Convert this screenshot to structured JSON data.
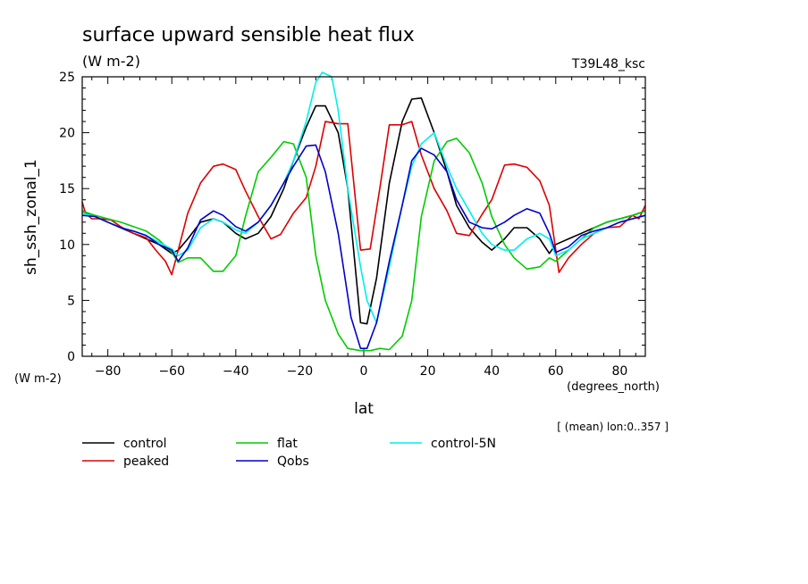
{
  "chart_data": {
    "type": "line",
    "title": "surface upward sensible heat flux",
    "subtitle": "(W m-2)",
    "tag": "T39L48_ksc",
    "ylabel": "sh_ssh_zonal_1",
    "yunits": "(W m-2)",
    "xlabel": "lat",
    "xunits": "(degrees_north)",
    "footnote": "[ (mean) lon:0..357 ]",
    "xlim": [
      -88,
      88
    ],
    "ylim": [
      0,
      25
    ],
    "xticks": [
      -80,
      -60,
      -40,
      -20,
      0,
      20,
      40,
      60,
      80
    ],
    "yticks": [
      0,
      5,
      10,
      15,
      20,
      25
    ],
    "legend": "below",
    "series": [
      {
        "name": "control",
        "color": "#000000",
        "x": [
          -88,
          -84,
          -80,
          -76,
          -72,
          -68,
          -64,
          -60,
          -58,
          -55,
          -51,
          -47,
          -44,
          -40,
          -37,
          -33,
          -29,
          -25,
          -22,
          -18,
          -15,
          -12,
          -8,
          -5,
          -1,
          1,
          4,
          8,
          12,
          15,
          18,
          22,
          26,
          29,
          33,
          37,
          40,
          44,
          47,
          51,
          55,
          58,
          60,
          64,
          68,
          72,
          76,
          80,
          84,
          88
        ],
        "y": [
          13.0,
          12.5,
          12.0,
          11.5,
          11.0,
          10.5,
          10.0,
          9.2,
          9.5,
          10.5,
          12.0,
          12.3,
          12.0,
          11.0,
          10.5,
          11.0,
          12.5,
          15.0,
          17.5,
          20.5,
          22.4,
          22.4,
          20.0,
          15.0,
          3.0,
          2.9,
          7.0,
          15.5,
          21.0,
          23.0,
          23.1,
          20.0,
          16.5,
          13.5,
          11.5,
          10.2,
          9.5,
          10.5,
          11.5,
          11.5,
          10.5,
          9.2,
          10.0,
          10.5,
          11.0,
          11.5,
          12.0,
          12.3,
          12.6,
          13.0
        ]
      },
      {
        "name": "peaked",
        "color": "#dd0000",
        "x": [
          -88,
          -87,
          -85,
          -82,
          -79,
          -76,
          -72,
          -68,
          -65,
          -62,
          -60,
          -58,
          -55,
          -51,
          -47,
          -44,
          -40,
          -37,
          -33,
          -29,
          -26,
          -22,
          -18,
          -15,
          -12,
          -8,
          -5,
          -1,
          2,
          5,
          8,
          12,
          15,
          18,
          22,
          26,
          29,
          33,
          37,
          40,
          44,
          47,
          51,
          55,
          58,
          61,
          64,
          68,
          72,
          76,
          80,
          84,
          86,
          88
        ],
        "y": [
          13.8,
          12.8,
          12.3,
          12.3,
          12.2,
          11.6,
          11.0,
          10.6,
          9.5,
          8.5,
          7.3,
          9.5,
          12.8,
          15.5,
          17.0,
          17.2,
          16.7,
          14.8,
          12.5,
          10.5,
          10.9,
          12.8,
          14.2,
          17.0,
          21.0,
          20.8,
          20.8,
          9.5,
          9.6,
          15.0,
          20.7,
          20.7,
          21.0,
          18.0,
          15.0,
          13.0,
          11.0,
          10.8,
          12.7,
          14.0,
          17.1,
          17.2,
          16.9,
          15.7,
          13.5,
          7.5,
          8.8,
          10.0,
          11.0,
          11.5,
          11.6,
          12.6,
          12.3,
          13.5
        ]
      },
      {
        "name": "flat",
        "color": "#00cc00",
        "x": [
          -88,
          -84,
          -80,
          -76,
          -72,
          -68,
          -64,
          -60,
          -58,
          -55,
          -51,
          -47,
          -44,
          -40,
          -37,
          -33,
          -29,
          -25,
          -22,
          -18,
          -15,
          -12,
          -8,
          -5,
          -1,
          2,
          5,
          8,
          12,
          15,
          18,
          22,
          26,
          29,
          33,
          37,
          40,
          44,
          47,
          51,
          55,
          58,
          60,
          64,
          68,
          72,
          76,
          80,
          84,
          88
        ],
        "y": [
          13.0,
          12.6,
          12.3,
          12.0,
          11.6,
          11.2,
          10.4,
          9.3,
          8.4,
          8.8,
          8.8,
          7.6,
          7.6,
          9.0,
          12.5,
          16.5,
          17.8,
          19.2,
          19.0,
          16.0,
          9.0,
          5.0,
          2.0,
          0.7,
          0.5,
          0.5,
          0.7,
          0.6,
          1.8,
          5.0,
          12.5,
          17.5,
          19.2,
          19.5,
          18.2,
          15.5,
          12.5,
          10.0,
          8.8,
          7.8,
          8.0,
          8.8,
          8.5,
          9.5,
          10.5,
          11.5,
          12.0,
          12.3,
          12.6,
          13.0
        ]
      },
      {
        "name": "control-5N",
        "color": "#00eeee",
        "x": [
          -88,
          -84,
          -80,
          -76,
          -72,
          -68,
          -64,
          -60,
          -58,
          -55,
          -51,
          -47,
          -44,
          -40,
          -37,
          -33,
          -29,
          -25,
          -22,
          -18,
          -15,
          -13,
          -10,
          -8,
          -5,
          -1,
          1,
          4,
          8,
          12,
          15,
          18,
          22,
          26,
          29,
          33,
          37,
          40,
          44,
          47,
          51,
          55,
          58,
          60,
          64,
          68,
          72,
          76,
          80,
          84,
          88
        ],
        "y": [
          12.8,
          12.5,
          12.0,
          11.5,
          11.2,
          10.8,
          10.2,
          9.6,
          9.0,
          9.5,
          11.5,
          12.3,
          12.0,
          11.3,
          11.0,
          12.0,
          13.5,
          15.5,
          17.5,
          21.0,
          24.5,
          25.4,
          25.0,
          22.0,
          15.0,
          8.0,
          5.0,
          3.0,
          8.0,
          13.5,
          17.0,
          19.0,
          20.0,
          17.0,
          15.0,
          13.0,
          11.0,
          10.0,
          9.5,
          9.5,
          10.5,
          11.0,
          10.5,
          9.0,
          9.5,
          10.5,
          11.0,
          11.5,
          12.0,
          12.3,
          12.6
        ]
      },
      {
        "name": "Qobs",
        "color": "#0000cc",
        "x": [
          -88,
          -84,
          -80,
          -76,
          -72,
          -68,
          -64,
          -60,
          -58,
          -55,
          -51,
          -47,
          -44,
          -40,
          -37,
          -33,
          -29,
          -25,
          -22,
          -18,
          -15,
          -12,
          -8,
          -4,
          -1,
          1,
          4,
          8,
          12,
          15,
          18,
          22,
          26,
          29,
          33,
          37,
          40,
          44,
          47,
          51,
          55,
          58,
          60,
          64,
          68,
          72,
          76,
          80,
          84,
          88
        ],
        "y": [
          12.6,
          12.5,
          12.0,
          11.5,
          11.2,
          10.8,
          10.0,
          9.5,
          8.5,
          9.7,
          12.2,
          13.0,
          12.6,
          11.6,
          11.2,
          12.0,
          13.5,
          15.5,
          17.0,
          18.8,
          18.9,
          16.5,
          11.0,
          3.5,
          0.7,
          0.7,
          3.0,
          8.5,
          13.5,
          17.5,
          18.6,
          18.0,
          16.5,
          14.0,
          12.0,
          11.5,
          11.4,
          12.0,
          12.6,
          13.2,
          12.8,
          11.0,
          9.3,
          9.8,
          10.8,
          11.2,
          11.5,
          12.0,
          12.3,
          12.6
        ]
      }
    ]
  }
}
